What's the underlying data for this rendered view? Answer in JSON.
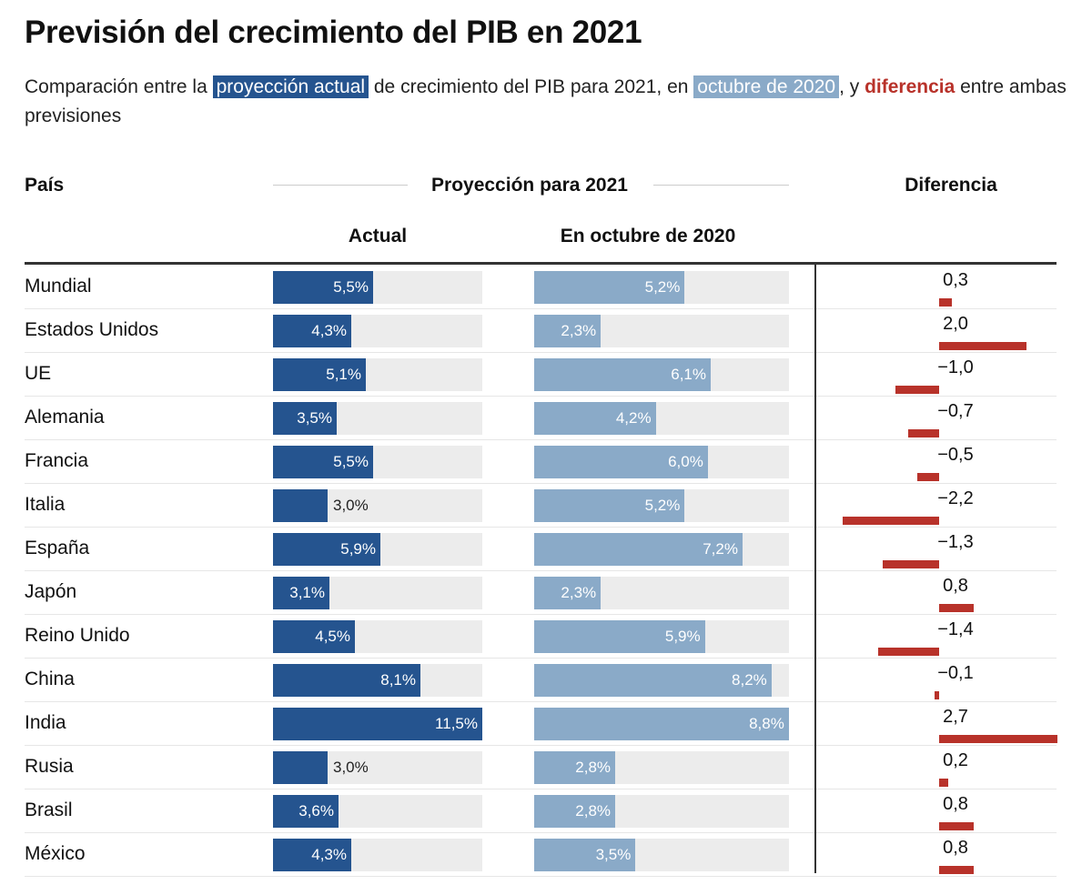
{
  "title": "Previsión del crecimiento del PIB en 2021",
  "subtitle": {
    "p1": "Comparación entre la ",
    "h1": "proyección actual",
    "p2": " de crecimiento del PIB para 2021, en ",
    "h2": "octubre de 2020",
    "p3": ", y ",
    "h3": "diferencia",
    "p4": " entre ambas previsiones"
  },
  "colors": {
    "actual": "#25548f",
    "october": "#8aaac8",
    "difference": "#b8322a",
    "track": "#ececec"
  },
  "chart_data": {
    "type": "table",
    "title": "Previsión del crecimiento del PIB en 2021",
    "headers": {
      "country": "País",
      "group": "Proyección para 2021",
      "actual": "Actual",
      "october": "En octubre de 2020",
      "difference": "Diferencia"
    },
    "actual_max": 11.5,
    "october_max": 8.8,
    "rows": [
      {
        "country": "Mundial",
        "actual": 5.5,
        "actual_label": "5,5%",
        "october": 5.2,
        "october_label": "5,2%",
        "difference": 0.3,
        "difference_label": "0,3"
      },
      {
        "country": "Estados Unidos",
        "actual": 4.3,
        "actual_label": "4,3%",
        "october": 2.3,
        "october_label": "2,3%",
        "difference": 2.0,
        "difference_label": "2,0"
      },
      {
        "country": "UE",
        "actual": 5.1,
        "actual_label": "5,1%",
        "october": 6.1,
        "october_label": "6,1%",
        "difference": -1.0,
        "difference_label": "−1,0"
      },
      {
        "country": "Alemania",
        "actual": 3.5,
        "actual_label": "3,5%",
        "october": 4.2,
        "october_label": "4,2%",
        "difference": -0.7,
        "difference_label": "−0,7"
      },
      {
        "country": "Francia",
        "actual": 5.5,
        "actual_label": "5,5%",
        "october": 6.0,
        "october_label": "6,0%",
        "difference": -0.5,
        "difference_label": "−0,5"
      },
      {
        "country": "Italia",
        "actual": 3.0,
        "actual_label": "3,0%",
        "october": 5.2,
        "october_label": "5,2%",
        "difference": -2.2,
        "difference_label": "−2,2"
      },
      {
        "country": "España",
        "actual": 5.9,
        "actual_label": "5,9%",
        "october": 7.2,
        "october_label": "7,2%",
        "difference": -1.3,
        "difference_label": "−1,3"
      },
      {
        "country": "Japón",
        "actual": 3.1,
        "actual_label": "3,1%",
        "october": 2.3,
        "october_label": "2,3%",
        "difference": 0.8,
        "difference_label": "0,8"
      },
      {
        "country": "Reino Unido",
        "actual": 4.5,
        "actual_label": "4,5%",
        "october": 5.9,
        "october_label": "5,9%",
        "difference": -1.4,
        "difference_label": "−1,4"
      },
      {
        "country": "China",
        "actual": 8.1,
        "actual_label": "8,1%",
        "october": 8.2,
        "october_label": "8,2%",
        "difference": -0.1,
        "difference_label": "−0,1"
      },
      {
        "country": "India",
        "actual": 11.5,
        "actual_label": "11,5%",
        "october": 8.8,
        "october_label": "8,8%",
        "difference": 2.7,
        "difference_label": "2,7"
      },
      {
        "country": "Rusia",
        "actual": 3.0,
        "actual_label": "3,0%",
        "october": 2.8,
        "october_label": "2,8%",
        "difference": 0.2,
        "difference_label": "0,2"
      },
      {
        "country": "Brasil",
        "actual": 3.6,
        "actual_label": "3,6%",
        "october": 2.8,
        "october_label": "2,8%",
        "difference": 0.8,
        "difference_label": "0,8"
      },
      {
        "country": "México",
        "actual": 4.3,
        "actual_label": "4,3%",
        "october": 3.5,
        "october_label": "3,5%",
        "difference": 0.8,
        "difference_label": "0,8"
      }
    ]
  }
}
